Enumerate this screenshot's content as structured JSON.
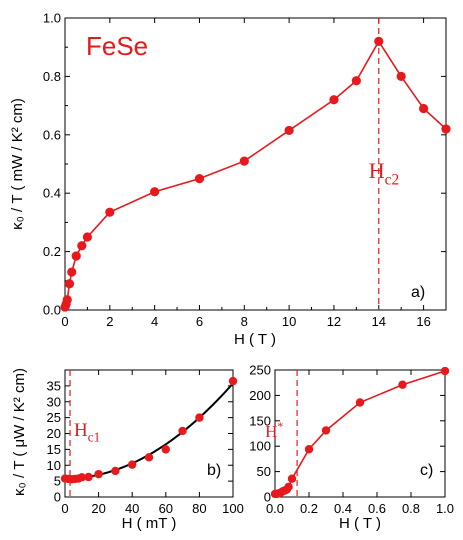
{
  "colors": {
    "data": "#e8191c",
    "fit": "#000000",
    "axis": "#000000"
  },
  "material_label": "FeSe",
  "chart_data": [
    {
      "type": "line",
      "panel_label": "a)",
      "xlabel": "H ( T )",
      "ylabel": "κ₀ / T ( mW / K² cm)",
      "xlim": [
        0,
        17
      ],
      "ylim": [
        0,
        1.0
      ],
      "xticks": [
        "0",
        "2",
        "4",
        "6",
        "8",
        "10",
        "12",
        "14",
        "16"
      ],
      "yticks": [
        "0.0",
        "0.2",
        "0.4",
        "0.6",
        "0.8",
        "1.0"
      ],
      "series": [
        {
          "x": [
            0,
            0.05,
            0.1,
            0.2,
            0.3,
            0.5,
            0.75,
            1,
            2,
            4,
            6,
            8,
            10,
            12,
            13,
            14,
            15,
            16,
            17
          ],
          "values": [
            0.01,
            0.02,
            0.035,
            0.09,
            0.13,
            0.185,
            0.22,
            0.25,
            0.335,
            0.405,
            0.45,
            0.51,
            0.615,
            0.72,
            0.785,
            0.92,
            0.8,
            0.69,
            0.62
          ]
        }
      ],
      "annotations": [
        {
          "text_main": "H",
          "text_sub": "c2",
          "x": 14
        }
      ],
      "grid": false
    },
    {
      "type": "line",
      "panel_label": "b)",
      "xlabel": "H ( mT )",
      "ylabel": "κ₀ / T ( μW / K² cm)",
      "xlim": [
        0,
        100
      ],
      "ylim": [
        0,
        40
      ],
      "xticks": [
        "0",
        "20",
        "40",
        "60",
        "80",
        "100"
      ],
      "yticks": [
        "0",
        "5",
        "10",
        "15",
        "20",
        "25",
        "30",
        "35"
      ],
      "series": [
        {
          "x": [
            0,
            2,
            4,
            6,
            8,
            10,
            14,
            20,
            30,
            40,
            50,
            60,
            70,
            80,
            100
          ],
          "values": [
            5.8,
            5.7,
            5.6,
            5.7,
            5.8,
            6.2,
            6.3,
            7.2,
            8.2,
            10.2,
            12.5,
            15.0,
            20.8,
            25.0,
            36.5
          ]
        }
      ],
      "fit_line": true,
      "annotations": [
        {
          "text_main": "H",
          "text_sub": "c1",
          "x": 3
        }
      ],
      "grid": false
    },
    {
      "type": "line",
      "panel_label": "c)",
      "xlabel": "H ( T )",
      "ylabel": "",
      "xlim": [
        0,
        1.0
      ],
      "ylim": [
        0,
        250
      ],
      "xticks": [
        "0.0",
        "0.2",
        "0.4",
        "0.6",
        "0.8",
        "1.0"
      ],
      "yticks": [
        "0",
        "50",
        "100",
        "150",
        "200",
        "250"
      ],
      "series": [
        {
          "x": [
            0,
            0.01,
            0.02,
            0.03,
            0.04,
            0.05,
            0.06,
            0.07,
            0.08,
            0.1,
            0.2,
            0.3,
            0.5,
            0.75,
            1.0
          ],
          "values": [
            6,
            6,
            7,
            8,
            10,
            12,
            13,
            15,
            20,
            36,
            94,
            131,
            186,
            221,
            248
          ]
        }
      ],
      "annotations": [
        {
          "text_main": "H",
          "text_sup": "*",
          "x": 0.13
        }
      ],
      "grid": false
    }
  ]
}
